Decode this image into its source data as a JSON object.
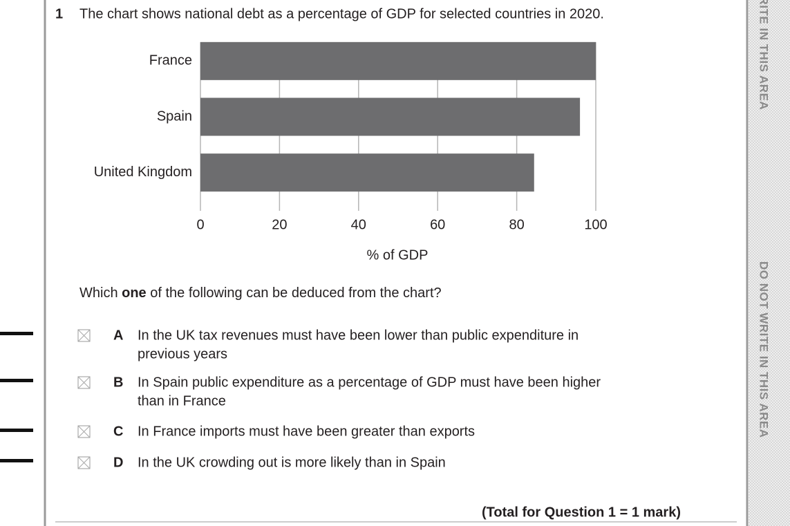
{
  "question": {
    "number": "1",
    "text": "The chart shows national debt as a percentage of GDP for selected countries in 2020."
  },
  "chart_data": {
    "type": "bar",
    "orientation": "horizontal",
    "categories": [
      "France",
      "Spain",
      "United Kingdom"
    ],
    "values": [
      100,
      96,
      84.4
    ],
    "color": "#6d6d6f",
    "xlim": [
      0,
      100
    ],
    "xticks": [
      0,
      20,
      40,
      60,
      80,
      100
    ],
    "xlabel": "% of GDP",
    "grid": true
  },
  "prompt": {
    "before": "Which ",
    "bold": "one",
    "after": " of the following can be deduced from the chart?"
  },
  "options": [
    {
      "letter": "A",
      "lines": [
        "In the UK tax revenues must have been lower than public expenditure in",
        "previous years"
      ]
    },
    {
      "letter": "B",
      "lines": [
        "In Spain public expenditure as a percentage of GDP must have been higher",
        "than in France"
      ]
    },
    {
      "letter": "C",
      "lines": [
        "In France imports must have been greater than exports"
      ]
    },
    {
      "letter": "D",
      "lines": [
        "In the UK crowding out is more likely than in Spain"
      ]
    }
  ],
  "total": "(Total for Question 1 = 1 mark)",
  "margin": [
    "WRITE IN THIS AREA",
    "DO NOT WRITE IN THIS AREA"
  ]
}
